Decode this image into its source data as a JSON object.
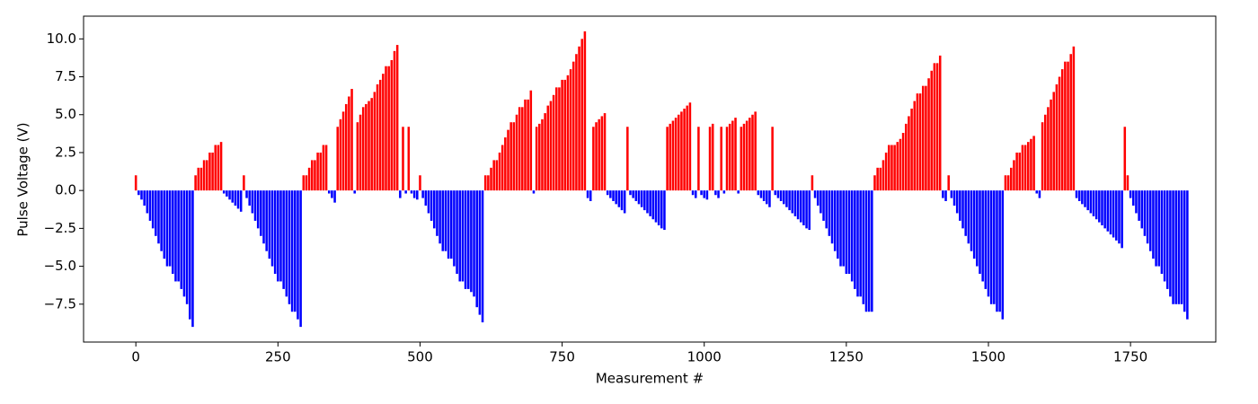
{
  "chart_data": {
    "type": "bar",
    "xlabel": "Measurement #",
    "ylabel": "Pulse Voltage (V)",
    "color_positive": "#ff0000",
    "color_negative": "#0000ff",
    "xlim": [
      -92,
      1900
    ],
    "ylim": [
      -10.0,
      11.5
    ],
    "xticks": [
      0,
      250,
      500,
      750,
      1000,
      1250,
      1500,
      1750
    ],
    "yticks": [
      {
        "value": -7.5,
        "label": "−7.5"
      },
      {
        "value": -5.0,
        "label": "−5.0"
      },
      {
        "value": -2.5,
        "label": "−2.5"
      },
      {
        "value": 0.0,
        "label": "0.0"
      },
      {
        "value": 2.5,
        "label": "2.5"
      },
      {
        "value": 5.0,
        "label": "5.0"
      },
      {
        "value": 7.5,
        "label": "7.5"
      },
      {
        "value": 10.0,
        "label": "10.0"
      }
    ],
    "x": [
      0,
      5,
      10,
      15,
      20,
      25,
      30,
      35,
      40,
      45,
      50,
      55,
      60,
      65,
      70,
      75,
      80,
      85,
      90,
      95,
      100,
      105,
      110,
      115,
      120,
      125,
      130,
      135,
      140,
      145,
      150,
      155,
      160,
      165,
      170,
      175,
      180,
      185,
      190,
      195,
      200,
      205,
      210,
      215,
      220,
      225,
      230,
      235,
      240,
      245,
      250,
      255,
      260,
      265,
      270,
      275,
      280,
      285,
      290,
      295,
      300,
      305,
      310,
      315,
      320,
      325,
      330,
      335,
      340,
      345,
      350,
      355,
      360,
      365,
      370,
      375,
      380,
      385,
      390,
      395,
      400,
      405,
      410,
      415,
      420,
      425,
      430,
      435,
      440,
      445,
      450,
      455,
      460,
      465,
      470,
      475,
      480,
      485,
      490,
      495,
      500,
      505,
      510,
      515,
      520,
      525,
      530,
      535,
      540,
      545,
      550,
      555,
      560,
      565,
      570,
      575,
      580,
      585,
      590,
      595,
      600,
      605,
      610,
      615,
      620,
      625,
      630,
      635,
      640,
      645,
      650,
      655,
      660,
      665,
      670,
      675,
      680,
      685,
      690,
      695,
      700,
      705,
      710,
      715,
      720,
      725,
      730,
      735,
      740,
      745,
      750,
      755,
      760,
      765,
      770,
      775,
      780,
      785,
      790,
      795,
      800,
      805,
      810,
      815,
      820,
      825,
      830,
      835,
      840,
      845,
      850,
      855,
      860,
      865,
      870,
      875,
      880,
      885,
      890,
      895,
      900,
      905,
      910,
      915,
      920,
      925,
      930,
      935,
      940,
      945,
      950,
      955,
      960,
      965,
      970,
      975,
      980,
      985,
      990,
      995,
      1000,
      1005,
      1010,
      1015,
      1020,
      1025,
      1030,
      1035,
      1040,
      1045,
      1050,
      1055,
      1060,
      1065,
      1070,
      1075,
      1080,
      1085,
      1090,
      1095,
      1100,
      1105,
      1110,
      1115,
      1120,
      1125,
      1130,
      1135,
      1140,
      1145,
      1150,
      1155,
      1160,
      1165,
      1170,
      1175,
      1180,
      1185,
      1190,
      1195,
      1200,
      1205,
      1210,
      1215,
      1220,
      1225,
      1230,
      1235,
      1240,
      1245,
      1250,
      1255,
      1260,
      1265,
      1270,
      1275,
      1280,
      1285,
      1290,
      1295,
      1300,
      1305,
      1310,
      1315,
      1320,
      1325,
      1330,
      1335,
      1340,
      1345,
      1350,
      1355,
      1360,
      1365,
      1370,
      1375,
      1380,
      1385,
      1390,
      1395,
      1400,
      1405,
      1410,
      1415,
      1420,
      1425,
      1430,
      1435,
      1440,
      1445,
      1450,
      1455,
      1460,
      1465,
      1470,
      1475,
      1480,
      1485,
      1490,
      1495,
      1500,
      1505,
      1510,
      1515,
      1520,
      1525,
      1530,
      1535,
      1540,
      1545,
      1550,
      1555,
      1560,
      1565,
      1570,
      1575,
      1580,
      1585,
      1590,
      1595,
      1600,
      1605,
      1610,
      1615,
      1620,
      1625,
      1630,
      1635,
      1640,
      1645,
      1650,
      1655,
      1660,
      1665,
      1670,
      1675,
      1680,
      1685,
      1690,
      1695,
      1700,
      1705,
      1710,
      1715,
      1720,
      1725,
      1730,
      1735,
      1740,
      1745,
      1750,
      1755,
      1760,
      1765,
      1770,
      1775,
      1780,
      1785,
      1790,
      1795,
      1800,
      1805,
      1810,
      1815,
      1820,
      1825,
      1830,
      1835,
      1840,
      1845,
      1850
    ],
    "values": [
      1.0,
      -0.3,
      -0.6,
      -1.0,
      -1.5,
      -2.0,
      -2.5,
      -3.0,
      -3.5,
      -4.0,
      -4.5,
      -5.0,
      -5.0,
      -5.5,
      -6.0,
      -6.0,
      -6.5,
      -7.0,
      -7.5,
      -8.5,
      -9.0,
      1.0,
      1.5,
      1.5,
      2.0,
      2.0,
      2.5,
      2.5,
      3.0,
      3.0,
      3.2,
      -0.2,
      -0.4,
      -0.6,
      -0.8,
      -1.0,
      -1.2,
      -1.4,
      1.0,
      -0.5,
      -1.0,
      -1.5,
      -2.0,
      -2.5,
      -3.0,
      -3.5,
      -4.0,
      -4.5,
      -5.0,
      -5.5,
      -6.0,
      -6.0,
      -6.5,
      -7.0,
      -7.5,
      -8.0,
      -8.0,
      -8.5,
      -9.0,
      1.0,
      1.0,
      1.5,
      2.0,
      2.0,
      2.5,
      2.5,
      3.0,
      3.0,
      -0.2,
      -0.5,
      -0.8,
      4.2,
      4.7,
      5.2,
      5.7,
      6.2,
      6.7,
      -0.2,
      4.5,
      5.0,
      5.5,
      5.7,
      5.9,
      6.1,
      6.5,
      7.0,
      7.3,
      7.7,
      8.2,
      8.2,
      8.6,
      9.2,
      9.6,
      -0.5,
      4.2,
      -0.2,
      4.2,
      -0.2,
      -0.5,
      -0.6,
      1.0,
      -0.5,
      -1.0,
      -1.5,
      -2.0,
      -2.5,
      -3.0,
      -3.5,
      -4.0,
      -4.0,
      -4.5,
      -4.5,
      -5.0,
      -5.5,
      -6.0,
      -6.0,
      -6.5,
      -6.5,
      -6.7,
      -7.0,
      -7.7,
      -8.2,
      -8.7,
      1.0,
      1.0,
      1.5,
      2.0,
      2.0,
      2.5,
      3.0,
      3.5,
      4.0,
      4.5,
      4.5,
      5.0,
      5.5,
      5.5,
      6.0,
      6.0,
      6.6,
      -0.2,
      4.2,
      4.4,
      4.7,
      5.1,
      5.6,
      5.9,
      6.3,
      6.8,
      6.8,
      7.3,
      7.3,
      7.6,
      8.0,
      8.5,
      9.0,
      9.5,
      10.0,
      10.5,
      -0.5,
      -0.7,
      4.2,
      4.5,
      4.7,
      4.9,
      5.1,
      -0.3,
      -0.5,
      -0.7,
      -0.9,
      -1.1,
      -1.3,
      -1.5,
      4.2,
      -0.3,
      -0.5,
      -0.7,
      -0.9,
      -1.1,
      -1.3,
      -1.5,
      -1.7,
      -1.9,
      -2.1,
      -2.3,
      -2.5,
      -2.6,
      4.2,
      4.4,
      4.6,
      4.8,
      5.0,
      5.2,
      5.4,
      5.6,
      5.8,
      -0.3,
      -0.5,
      4.2,
      -0.3,
      -0.5,
      -0.6,
      4.2,
      4.4,
      -0.3,
      -0.5,
      4.2,
      -0.2,
      4.2,
      4.4,
      4.6,
      4.8,
      -0.2,
      4.2,
      4.4,
      4.6,
      4.8,
      5.0,
      5.2,
      -0.3,
      -0.5,
      -0.7,
      -0.9,
      -1.1,
      4.2,
      -0.3,
      -0.5,
      -0.7,
      -0.9,
      -1.1,
      -1.3,
      -1.5,
      -1.7,
      -1.9,
      -2.1,
      -2.3,
      -2.5,
      -2.6,
      1.0,
      -0.5,
      -1.0,
      -1.5,
      -2.0,
      -2.5,
      -3.0,
      -3.5,
      -4.0,
      -4.5,
      -5.0,
      -5.0,
      -5.5,
      -5.5,
      -6.0,
      -6.5,
      -7.0,
      -7.0,
      -7.5,
      -8.0,
      -8.0,
      -8.0,
      1.0,
      1.5,
      1.5,
      2.0,
      2.5,
      3.0,
      3.0,
      3.0,
      3.2,
      3.4,
      3.8,
      4.4,
      4.9,
      5.4,
      5.9,
      6.4,
      6.4,
      6.9,
      6.9,
      7.4,
      7.9,
      8.4,
      8.4,
      8.9,
      -0.5,
      -0.7,
      1.0,
      -0.5,
      -1.0,
      -1.5,
      -2.0,
      -2.5,
      -3.0,
      -3.5,
      -4.0,
      -4.5,
      -5.0,
      -5.5,
      -6.0,
      -6.5,
      -7.0,
      -7.5,
      -7.5,
      -8.0,
      -8.0,
      -8.5,
      1.0,
      1.0,
      1.5,
      2.0,
      2.5,
      2.5,
      3.0,
      3.0,
      3.2,
      3.4,
      3.6,
      -0.2,
      -0.5,
      4.5,
      5.0,
      5.5,
      6.0,
      6.5,
      7.0,
      7.5,
      8.0,
      8.5,
      8.5,
      9.0,
      9.5,
      -0.5,
      -0.7,
      -0.9,
      -1.1,
      -1.3,
      -1.5,
      -1.7,
      -1.9,
      -2.1,
      -2.3,
      -2.5,
      -2.7,
      -2.9,
      -3.1,
      -3.3,
      -3.5,
      -3.8,
      4.2,
      1.0,
      -0.5,
      -1.0,
      -1.5,
      -2.0,
      -2.5,
      -3.0,
      -3.5,
      -4.0,
      -4.5,
      -5.0,
      -5.0,
      -5.5,
      -6.0,
      -6.5,
      -7.0,
      -7.5,
      -7.5,
      -7.5,
      -7.5,
      -8.0,
      -8.5
    ]
  }
}
